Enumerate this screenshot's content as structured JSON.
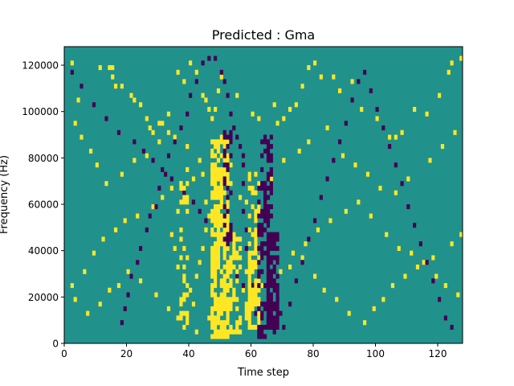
{
  "chart_data": {
    "type": "heatmap",
    "title": "Predicted : Gma",
    "xlabel": "Time step",
    "ylabel": "Frequency (Hz)",
    "xlim": [
      0,
      128
    ],
    "ylim": [
      0,
      128000
    ],
    "x_ticks": [
      0,
      20,
      40,
      60,
      80,
      100,
      120
    ],
    "y_ticks": [
      0,
      20000,
      40000,
      60000,
      80000,
      100000,
      120000
    ],
    "rows": 64,
    "colors": {
      "background": "#21918c",
      "high": "#fde725",
      "low": "#440154"
    },
    "grid": false,
    "legend": "none",
    "cells": [
      [
        2,
        60,
        1
      ],
      [
        4,
        52,
        1
      ],
      [
        11,
        59,
        1
      ],
      [
        14,
        59,
        1
      ],
      [
        15,
        59,
        1
      ],
      [
        15,
        57,
        1
      ],
      [
        16,
        55,
        1
      ],
      [
        18,
        55,
        1
      ],
      [
        21,
        53,
        1
      ],
      [
        22,
        52,
        1
      ],
      [
        24,
        51,
        1
      ],
      [
        26,
        48,
        1
      ],
      [
        27,
        46,
        1
      ],
      [
        28,
        45,
        1
      ],
      [
        30,
        47,
        1
      ],
      [
        31,
        47,
        1
      ],
      [
        33,
        49,
        1
      ],
      [
        36,
        58,
        1
      ],
      [
        38,
        56,
        1
      ],
      [
        40,
        60,
        1
      ],
      [
        42,
        58,
        1
      ],
      [
        44,
        53,
        1
      ],
      [
        45,
        52,
        1
      ],
      [
        46,
        50,
        1
      ],
      [
        47,
        48,
        1
      ],
      [
        48,
        50,
        1
      ],
      [
        49,
        54,
        1
      ],
      [
        50,
        57,
        1
      ],
      [
        55,
        53,
        1
      ],
      [
        60,
        49,
        1
      ],
      [
        62,
        48,
        1
      ],
      [
        67,
        51,
        1
      ],
      [
        68,
        47,
        1
      ],
      [
        70,
        48,
        1
      ],
      [
        72,
        50,
        1
      ],
      [
        74,
        51,
        1
      ],
      [
        76,
        55,
        1
      ],
      [
        78,
        59,
        1
      ],
      [
        80,
        60,
        1
      ],
      [
        82,
        57,
        1
      ],
      [
        86,
        57,
        1
      ],
      [
        88,
        54,
        1
      ],
      [
        92,
        56,
        1
      ],
      [
        95,
        50,
        1
      ],
      [
        100,
        48,
        1
      ],
      [
        104,
        44,
        1
      ],
      [
        106,
        44,
        1
      ],
      [
        108,
        45,
        1
      ],
      [
        112,
        50,
        1
      ],
      [
        116,
        49,
        1
      ],
      [
        120,
        53,
        1
      ],
      [
        123,
        58,
        1
      ],
      [
        124,
        60,
        1
      ],
      [
        127,
        61,
        1
      ],
      [
        3,
        47,
        1
      ],
      [
        5,
        44,
        1
      ],
      [
        8,
        41,
        1
      ],
      [
        10,
        38,
        1
      ],
      [
        13,
        34,
        1
      ],
      [
        18,
        36,
        1
      ],
      [
        22,
        39,
        1
      ],
      [
        26,
        40,
        1
      ],
      [
        30,
        43,
        1
      ],
      [
        33,
        45,
        1
      ],
      [
        35,
        44,
        1
      ],
      [
        39,
        42,
        1
      ],
      [
        43,
        39,
        1
      ],
      [
        44,
        36,
        1
      ],
      [
        51,
        37,
        1
      ],
      [
        53,
        34,
        1
      ],
      [
        56,
        31,
        1
      ],
      [
        58,
        30,
        1
      ],
      [
        64,
        33,
        1
      ],
      [
        66,
        35,
        1
      ],
      [
        70,
        39,
        1
      ],
      [
        75,
        41,
        1
      ],
      [
        78,
        43,
        1
      ],
      [
        84,
        46,
        1
      ],
      [
        89,
        40,
        1
      ],
      [
        93,
        38,
        1
      ],
      [
        97,
        36,
        1
      ],
      [
        101,
        33,
        1
      ],
      [
        106,
        32,
        1
      ],
      [
        110,
        35,
        1
      ],
      [
        117,
        39,
        1
      ],
      [
        121,
        42,
        1
      ],
      [
        125,
        45,
        1
      ],
      [
        2,
        12,
        1
      ],
      [
        6,
        15,
        1
      ],
      [
        9,
        19,
        1
      ],
      [
        12,
        22,
        1
      ],
      [
        16,
        24,
        1
      ],
      [
        19,
        26,
        1
      ],
      [
        23,
        27,
        1
      ],
      [
        28,
        29,
        1
      ],
      [
        31,
        31,
        1
      ],
      [
        34,
        33,
        1
      ],
      [
        37,
        34,
        1
      ],
      [
        39,
        37,
        1
      ],
      [
        41,
        35,
        1
      ],
      [
        45,
        30,
        1
      ],
      [
        49,
        27,
        1
      ],
      [
        52,
        25,
        1
      ],
      [
        56,
        22,
        1
      ],
      [
        59,
        21,
        1
      ],
      [
        65,
        18,
        1
      ],
      [
        68,
        17,
        1
      ],
      [
        73,
        19,
        1
      ],
      [
        77,
        21,
        1
      ],
      [
        81,
        24,
        1
      ],
      [
        85,
        26,
        1
      ],
      [
        90,
        28,
        1
      ],
      [
        94,
        30,
        1
      ],
      [
        98,
        27,
        1
      ],
      [
        103,
        23,
        1
      ],
      [
        107,
        20,
        1
      ],
      [
        111,
        19,
        1
      ],
      [
        115,
        17,
        1
      ],
      [
        119,
        14,
        1
      ],
      [
        122,
        12,
        1
      ],
      [
        126,
        10,
        1
      ],
      [
        3,
        9,
        1
      ],
      [
        7,
        6,
        1
      ],
      [
        11,
        8,
        1
      ],
      [
        14,
        11,
        1
      ],
      [
        17,
        12,
        1
      ],
      [
        20,
        15,
        1
      ],
      [
        24,
        13,
        1
      ],
      [
        29,
        10,
        1
      ],
      [
        33,
        7,
        1
      ],
      [
        36,
        5,
        1
      ],
      [
        38,
        3,
        1
      ],
      [
        42,
        2,
        1
      ],
      [
        46,
        5,
        1
      ],
      [
        50,
        7,
        1
      ],
      [
        54,
        9,
        1
      ],
      [
        57,
        11,
        1
      ],
      [
        61,
        13,
        1
      ],
      [
        63,
        12,
        1
      ],
      [
        69,
        15,
        1
      ],
      [
        72,
        16,
        1
      ],
      [
        76,
        18,
        1
      ],
      [
        80,
        14,
        1
      ],
      [
        83,
        11,
        1
      ],
      [
        87,
        9,
        1
      ],
      [
        91,
        6,
        1
      ],
      [
        96,
        4,
        1
      ],
      [
        99,
        7,
        1
      ],
      [
        102,
        9,
        1
      ],
      [
        105,
        12,
        1
      ],
      [
        109,
        14,
        1
      ],
      [
        113,
        16,
        1
      ],
      [
        118,
        18,
        1
      ],
      [
        124,
        21,
        1
      ],
      [
        127,
        23,
        1
      ],
      [
        47,
        40,
        1
      ],
      [
        47,
        37,
        1
      ],
      [
        47,
        34,
        1
      ],
      [
        48,
        42,
        1
      ],
      [
        48,
        38,
        1
      ],
      [
        48,
        31,
        1
      ],
      [
        49,
        36,
        1
      ],
      [
        49,
        29,
        1
      ],
      [
        50,
        44,
        1
      ],
      [
        50,
        33,
        1
      ],
      [
        51,
        40,
        1
      ],
      [
        51,
        26,
        1
      ],
      [
        52,
        43,
        1
      ],
      [
        53,
        38,
        1
      ],
      [
        46,
        27,
        1
      ],
      [
        45,
        24,
        1
      ],
      [
        44,
        20,
        1
      ],
      [
        43,
        17,
        1
      ],
      [
        42,
        14,
        1
      ],
      [
        41,
        8,
        1
      ],
      [
        40,
        11,
        1
      ],
      [
        39,
        4,
        1
      ],
      [
        37,
        9,
        1
      ],
      [
        36,
        16,
        1
      ],
      [
        35,
        20,
        1
      ],
      [
        34,
        23,
        1
      ],
      [
        57,
        40,
        0
      ],
      [
        57,
        38,
        0
      ],
      [
        57,
        34,
        0
      ],
      [
        57,
        28,
        0
      ],
      [
        58,
        24,
        0
      ],
      [
        58,
        20,
        0
      ],
      [
        59,
        16,
        0
      ],
      [
        60,
        12,
        0
      ],
      [
        60,
        9,
        0
      ],
      [
        61,
        6,
        0
      ],
      [
        62,
        4,
        0
      ],
      [
        56,
        42,
        0
      ],
      [
        55,
        44,
        0
      ],
      [
        54,
        46,
        0
      ],
      [
        53,
        49,
        0
      ],
      [
        52,
        53,
        0
      ],
      [
        51,
        56,
        0
      ],
      [
        50,
        58,
        0
      ],
      [
        48,
        61,
        0
      ],
      [
        46,
        61,
        0
      ],
      [
        44,
        60,
        0
      ],
      [
        42,
        56,
        0
      ],
      [
        40,
        53,
        0
      ],
      [
        39,
        49,
        0
      ],
      [
        37,
        46,
        0
      ],
      [
        35,
        43,
        0
      ],
      [
        33,
        40,
        0
      ],
      [
        32,
        36,
        0
      ],
      [
        30,
        33,
        0
      ],
      [
        29,
        29,
        0
      ],
      [
        27,
        27,
        0
      ],
      [
        26,
        24,
        0
      ],
      [
        24,
        20,
        0
      ],
      [
        23,
        17,
        0
      ],
      [
        21,
        14,
        0
      ],
      [
        20,
        10,
        0
      ],
      [
        19,
        7,
        0
      ],
      [
        18,
        4,
        0
      ],
      [
        63,
        43,
        0
      ],
      [
        63,
        40,
        0
      ],
      [
        63,
        37,
        0
      ],
      [
        63,
        34,
        0
      ],
      [
        64,
        31,
        0
      ],
      [
        64,
        27,
        0
      ],
      [
        64,
        24,
        0
      ],
      [
        65,
        21,
        0
      ],
      [
        65,
        18,
        0
      ],
      [
        66,
        15,
        0
      ],
      [
        67,
        12,
        0
      ],
      [
        68,
        9,
        0
      ],
      [
        69,
        6,
        0
      ],
      [
        70,
        3,
        0
      ],
      [
        72,
        8,
        0
      ],
      [
        74,
        13,
        0
      ],
      [
        76,
        17,
        0
      ],
      [
        78,
        22,
        0
      ],
      [
        80,
        26,
        0
      ],
      [
        82,
        31,
        0
      ],
      [
        84,
        35,
        0
      ],
      [
        86,
        39,
        0
      ],
      [
        88,
        43,
        0
      ],
      [
        90,
        47,
        0
      ],
      [
        92,
        52,
        0
      ],
      [
        94,
        56,
        0
      ],
      [
        96,
        58,
        0
      ],
      [
        98,
        54,
        0
      ],
      [
        100,
        50,
        0
      ],
      [
        102,
        46,
        0
      ],
      [
        104,
        42,
        0
      ],
      [
        106,
        38,
        0
      ],
      [
        108,
        34,
        0
      ],
      [
        110,
        29,
        0
      ],
      [
        112,
        25,
        0
      ],
      [
        114,
        21,
        0
      ],
      [
        116,
        17,
        0
      ],
      [
        118,
        13,
        0
      ],
      [
        120,
        9,
        0
      ],
      [
        122,
        5,
        0
      ],
      [
        124,
        3,
        0
      ],
      [
        2,
        58,
        0
      ],
      [
        5,
        55,
        0
      ],
      [
        9,
        51,
        0
      ],
      [
        13,
        48,
        0
      ],
      [
        17,
        45,
        0
      ],
      [
        22,
        43,
        0
      ],
      [
        25,
        41,
        0
      ],
      [
        28,
        39,
        0
      ],
      [
        31,
        37,
        0
      ],
      [
        34,
        35,
        0
      ],
      [
        38,
        32,
        0
      ],
      [
        41,
        30,
        0
      ],
      [
        43,
        28,
        0
      ],
      [
        45,
        26,
        0
      ],
      [
        47,
        23,
        0
      ],
      [
        49,
        21,
        0
      ],
      [
        51,
        18,
        0
      ],
      [
        53,
        16,
        0
      ],
      [
        55,
        14,
        0
      ],
      [
        57,
        12,
        0
      ],
      [
        59,
        10,
        0
      ],
      [
        61,
        8,
        0
      ],
      [
        63,
        6,
        0
      ],
      [
        65,
        4,
        0
      ],
      [
        67,
        2,
        0
      ]
    ],
    "bands": [
      {
        "x0": 47,
        "x1": 52,
        "r0": 1,
        "r1": 43,
        "v": 1,
        "p": 0.75
      },
      {
        "x0": 36,
        "x1": 39,
        "r0": 5,
        "r1": 34,
        "v": 1,
        "p": 0.3
      },
      {
        "x0": 53,
        "x1": 56,
        "r0": 2,
        "r1": 24,
        "v": 1,
        "p": 0.4
      },
      {
        "x0": 58,
        "x1": 60,
        "r0": 3,
        "r1": 17,
        "v": 1,
        "p": 0.4
      },
      {
        "x0": 59,
        "x1": 62,
        "r0": 3,
        "r1": 36,
        "v": 1,
        "p": 0.55
      },
      {
        "x0": 62,
        "x1": 65,
        "r0": 1,
        "r1": 35,
        "v": 0,
        "p": 0.45
      },
      {
        "x0": 65,
        "x1": 68,
        "r0": 3,
        "r1": 23,
        "v": 0,
        "p": 0.75
      },
      {
        "x0": 64,
        "x1": 66,
        "r0": 26,
        "r1": 44,
        "v": 0,
        "p": 0.6
      },
      {
        "x0": 51,
        "x1": 53,
        "r0": 21,
        "r1": 45,
        "v": 0,
        "p": 0.45
      }
    ]
  }
}
